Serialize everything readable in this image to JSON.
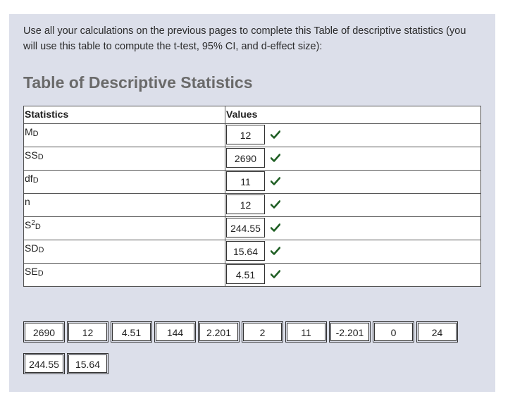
{
  "instructions": "Use all your calculations on the previous pages to complete this Table of descriptive statistics (you will use this table to compute the t-test, 95% CI, and d-effect size):",
  "heading": "Table of Descriptive Statistics",
  "table": {
    "header_statistics": "Statistics",
    "header_values": "Values",
    "rows": [
      {
        "main": "M",
        "sup": "",
        "sub": "D",
        "value": "12"
      },
      {
        "main": "SS",
        "sup": "",
        "sub": "D",
        "value": "2690"
      },
      {
        "main": "df",
        "sup": "",
        "sub": "D",
        "value": "11"
      },
      {
        "main": "n",
        "sup": "",
        "sub": "",
        "value": "12"
      },
      {
        "main": "S",
        "sup": "2",
        "sub": "D",
        "value": "244.55"
      },
      {
        "main": "SD",
        "sup": "",
        "sub": "D",
        "value": "15.64"
      },
      {
        "main": "SE",
        "sup": "",
        "sub": "D",
        "value": "4.51"
      }
    ],
    "check_color": "#1f5f24"
  },
  "answer_chips": [
    "2690",
    "12",
    "4.51",
    "144",
    "2.201",
    "2",
    "11",
    "-2.201",
    "0",
    "24",
    "244.55",
    "15.64"
  ]
}
